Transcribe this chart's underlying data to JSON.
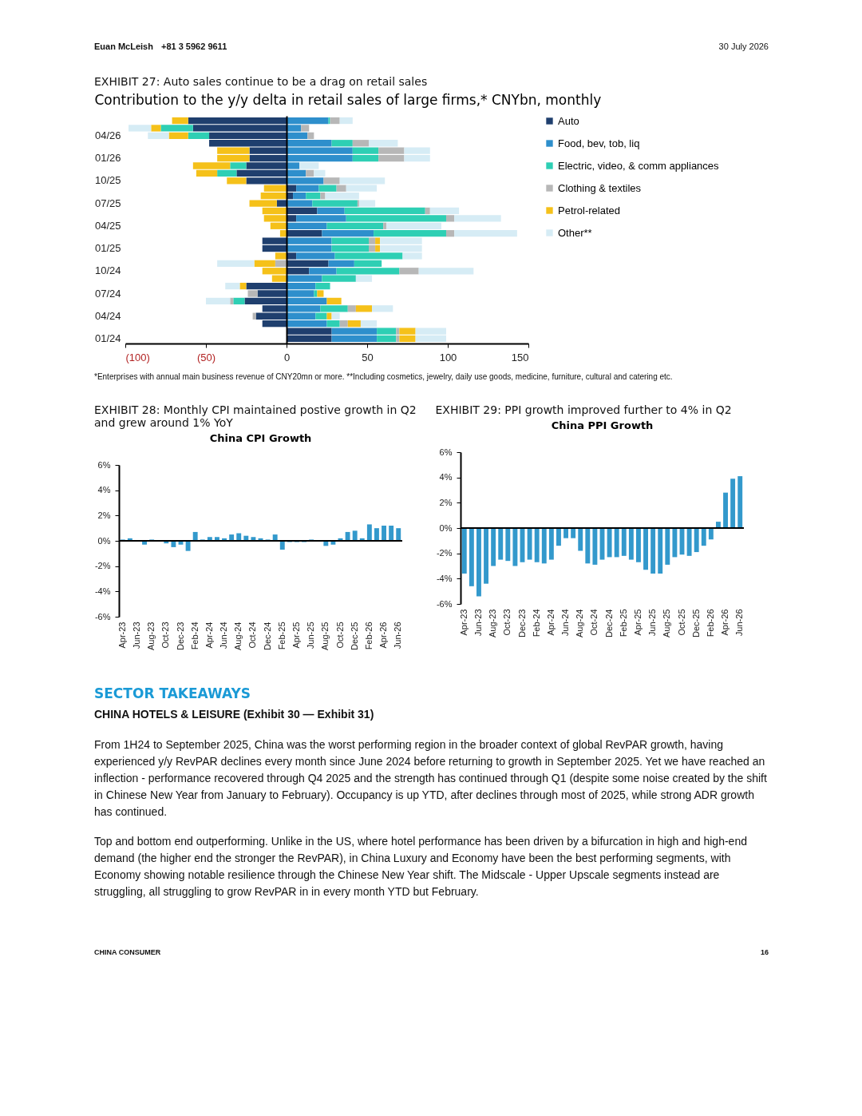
{
  "chart_data": [
    {
      "type": "other",
      "annotations": [
        "Euan McLeish",
        "+81 3 5962 9611",
        "30 July 2026"
      ]
    },
    {
      "type": "bar",
      "orientation": "horizontal",
      "stacked": true,
      "legend": "right",
      "title": "EXHIBIT 27: Auto sales continue to be a drag on retail sales",
      "subtitle": "Contribution to the y/y delta in retail sales of large firms,* CNYbn, monthly",
      "categories": [
        null,
        null,
        "04/26",
        null,
        null,
        "01/26",
        null,
        null,
        "10/25",
        null,
        null,
        "07/25",
        null,
        null,
        "04/25",
        null,
        null,
        "01/25",
        null,
        null,
        "10/24",
        null,
        null,
        "07/24",
        null,
        null,
        "04/24",
        null,
        null,
        "01/24"
      ],
      "xlim": [
        -100,
        150
      ],
      "xticks": [
        {
          "value": -100,
          "label": "(100)"
        },
        {
          "value": -50,
          "label": "(50)"
        },
        0,
        50,
        100,
        150
      ],
      "series": [
        {
          "name": "Auto",
          "color": "#1f3f6e",
          "values": [
            -61,
            -58,
            -48,
            -48,
            -23,
            -23,
            -25,
            -31,
            -25,
            6,
            4,
            -6,
            19,
            6,
            null,
            22,
            -15,
            -15,
            6,
            26,
            14,
            null,
            -25,
            -18,
            -26,
            -15,
            -19,
            -15,
            28,
            28
          ]
        },
        {
          "name": "Food, bev, tob, liq",
          "color": "#2e8fcc",
          "values": [
            26,
            9,
            13,
            28,
            41,
            41,
            8,
            12,
            23,
            14,
            8,
            16,
            17,
            31,
            25,
            32,
            28,
            28,
            24,
            16,
            17,
            22,
            18,
            17,
            25,
            21,
            18,
            25,
            28,
            28
          ]
        },
        {
          "name": "Electric, video, & comm appliances",
          "color": "#2ecfb4",
          "values": [
            1,
            -20,
            -13,
            13,
            16,
            16,
            -10,
            -12,
            null,
            11,
            9,
            28,
            50,
            62,
            35,
            45,
            23,
            23,
            42,
            17,
            39,
            21,
            9,
            2,
            -7,
            17,
            7,
            8,
            12,
            12
          ]
        },
        {
          "name": "Clothing & textiles",
          "color": "#b7b7b7",
          "values": [
            6,
            5,
            4,
            10,
            16,
            16,
            null,
            5,
            10,
            6,
            3,
            1,
            3,
            5,
            2,
            5,
            4,
            4,
            null,
            -7,
            12,
            null,
            null,
            -6,
            -2,
            5,
            -2,
            5,
            2,
            2
          ]
        },
        {
          "name": "Petrol-related",
          "color": "#f5c11a",
          "values": [
            -10,
            -6,
            -12,
            null,
            -20,
            -20,
            -23,
            -13,
            -12,
            -14,
            -16,
            -17,
            -15,
            -14,
            -10,
            -4,
            3,
            3,
            -7,
            -13,
            -15,
            -9,
            -4,
            4,
            9,
            10,
            3,
            8,
            10,
            10
          ]
        },
        {
          "name": "Other**",
          "color": "#d6ecf5",
          "values": [
            8,
            -14,
            -13,
            18,
            16,
            16,
            12,
            7,
            28,
            19,
            21,
            10,
            18,
            29,
            34,
            39,
            26,
            26,
            12,
            -23,
            34,
            10,
            -9,
            null,
            -15,
            13,
            5,
            10,
            19,
            19
          ]
        }
      ],
      "annotations": [
        "*Enterprises with annual main business revenue of CNY20mn or more. **Including cosmetics, jewelry, daily use goods, medicine, furniture, cultural and catering etc."
      ]
    },
    {
      "type": "bar",
      "title": "EXHIBIT 28: Monthly CPI maintained postive growth in Q2 and grew around 1% YoY",
      "subtitle": "China CPI Growth",
      "categories": [
        "Apr-23",
        null,
        "Jun-23",
        null,
        "Aug-23",
        null,
        "Oct-23",
        null,
        "Dec-23",
        null,
        "Feb-24",
        null,
        "Apr-24",
        null,
        "Jun-24",
        null,
        "Aug-24",
        null,
        "Oct-24",
        null,
        "Dec-24",
        null,
        "Feb-25",
        null,
        "Apr-25",
        null,
        "Jun-25",
        null,
        "Aug-25",
        null,
        "Oct-25",
        null,
        "Dec-25",
        null,
        "Feb-26",
        null,
        "Apr-26",
        null,
        "Jun-26"
      ],
      "color": "#3399cc",
      "values": [
        0.1,
        0.2,
        0.0,
        -0.3,
        0.1,
        0.0,
        -0.2,
        -0.5,
        -0.3,
        -0.8,
        0.7,
        0.1,
        0.3,
        0.3,
        0.2,
        0.5,
        0.6,
        0.4,
        0.3,
        0.2,
        0.1,
        0.5,
        -0.7,
        -0.1,
        -0.1,
        -0.1,
        0.1,
        0.0,
        -0.4,
        -0.3,
        0.2,
        0.7,
        0.8,
        0.2,
        1.3,
        1.0,
        1.2,
        1.2,
        1.0
      ],
      "ylim": [
        -6,
        6
      ],
      "yticks": [
        {
          "value": -6,
          "label": "-6%"
        },
        {
          "value": -4,
          "label": "-4%"
        },
        {
          "value": -2,
          "label": "-2%"
        },
        {
          "value": 0,
          "label": "0%"
        },
        {
          "value": 2,
          "label": "2%"
        },
        {
          "value": 4,
          "label": "4%"
        },
        {
          "value": 6,
          "label": "6%"
        }
      ]
    },
    {
      "type": "bar",
      "title": "EXHIBIT 29: PPI growth improved further to 4% in Q2",
      "subtitle": "China PPI Growth",
      "categories": [
        "Apr-23",
        null,
        "Jun-23",
        null,
        "Aug-23",
        null,
        "Oct-23",
        null,
        "Dec-23",
        null,
        "Feb-24",
        null,
        "Apr-24",
        null,
        "Jun-24",
        null,
        "Aug-24",
        null,
        "Oct-24",
        null,
        "Dec-24",
        null,
        "Feb-25",
        null,
        "Apr-25",
        null,
        "Jun-25",
        null,
        "Aug-25",
        null,
        "Oct-25",
        null,
        "Dec-25",
        null,
        "Feb-26",
        null,
        "Apr-26",
        null,
        "Jun-26"
      ],
      "color": "#3399cc",
      "values": [
        -3.6,
        -4.6,
        -5.4,
        -4.4,
        -3.0,
        -2.5,
        -2.6,
        -3.0,
        -2.7,
        -2.5,
        -2.7,
        -2.8,
        -2.5,
        -1.4,
        -0.8,
        -0.8,
        -1.8,
        -2.8,
        -2.9,
        -2.5,
        -2.3,
        -2.3,
        -2.2,
        -2.5,
        -2.7,
        -3.3,
        -3.6,
        -3.6,
        -2.9,
        -2.3,
        -2.1,
        -2.2,
        -1.9,
        -1.4,
        -0.9,
        0.5,
        2.8,
        3.9,
        4.1
      ],
      "ylim": [
        -6,
        6
      ],
      "yticks": [
        {
          "value": -6,
          "label": "-6%"
        },
        {
          "value": -4,
          "label": "-4%"
        },
        {
          "value": -2,
          "label": "-2%"
        },
        {
          "value": 0,
          "label": "0%"
        },
        {
          "value": 2,
          "label": "2%"
        },
        {
          "value": 4,
          "label": "4%"
        },
        {
          "value": 6,
          "label": "6%"
        }
      ]
    },
    {
      "type": "other",
      "title": "SECTOR TAKEAWAYS",
      "subtitle": "CHINA HOTELS & LEISURE (Exhibit 30 — Exhibit 31)",
      "annotations": [
        "From 1H24 to September 2025, China was the worst performing region in the broader context of global RevPAR growth, having experienced y/y RevPAR declines every month since June 2024 before returning to growth in September 2025. Yet we have reached an inflection - performance recovered through Q4 2025 and the strength has continued through Q1 (despite some noise created by the shift in Chinese New Year from January to February). Occupancy is up YTD, after declines through most of 2025, while strong ADR growth has continued.",
        "Top and bottom end outperforming. Unlike in the US, where hotel performance has been driven by a bifurcation in high and high-end demand (the higher end the stronger the RevPAR), in China Luxury and Economy have been the best performing segments, with Economy showing notable resilience through the Chinese New Year shift. The Midscale - Upper Upscale segments instead are struggling, all struggling to grow RevPAR in in every month YTD but February."
      ]
    },
    {
      "type": "other",
      "annotations": [
        "CHINA CONSUMER",
        "16"
      ]
    }
  ]
}
